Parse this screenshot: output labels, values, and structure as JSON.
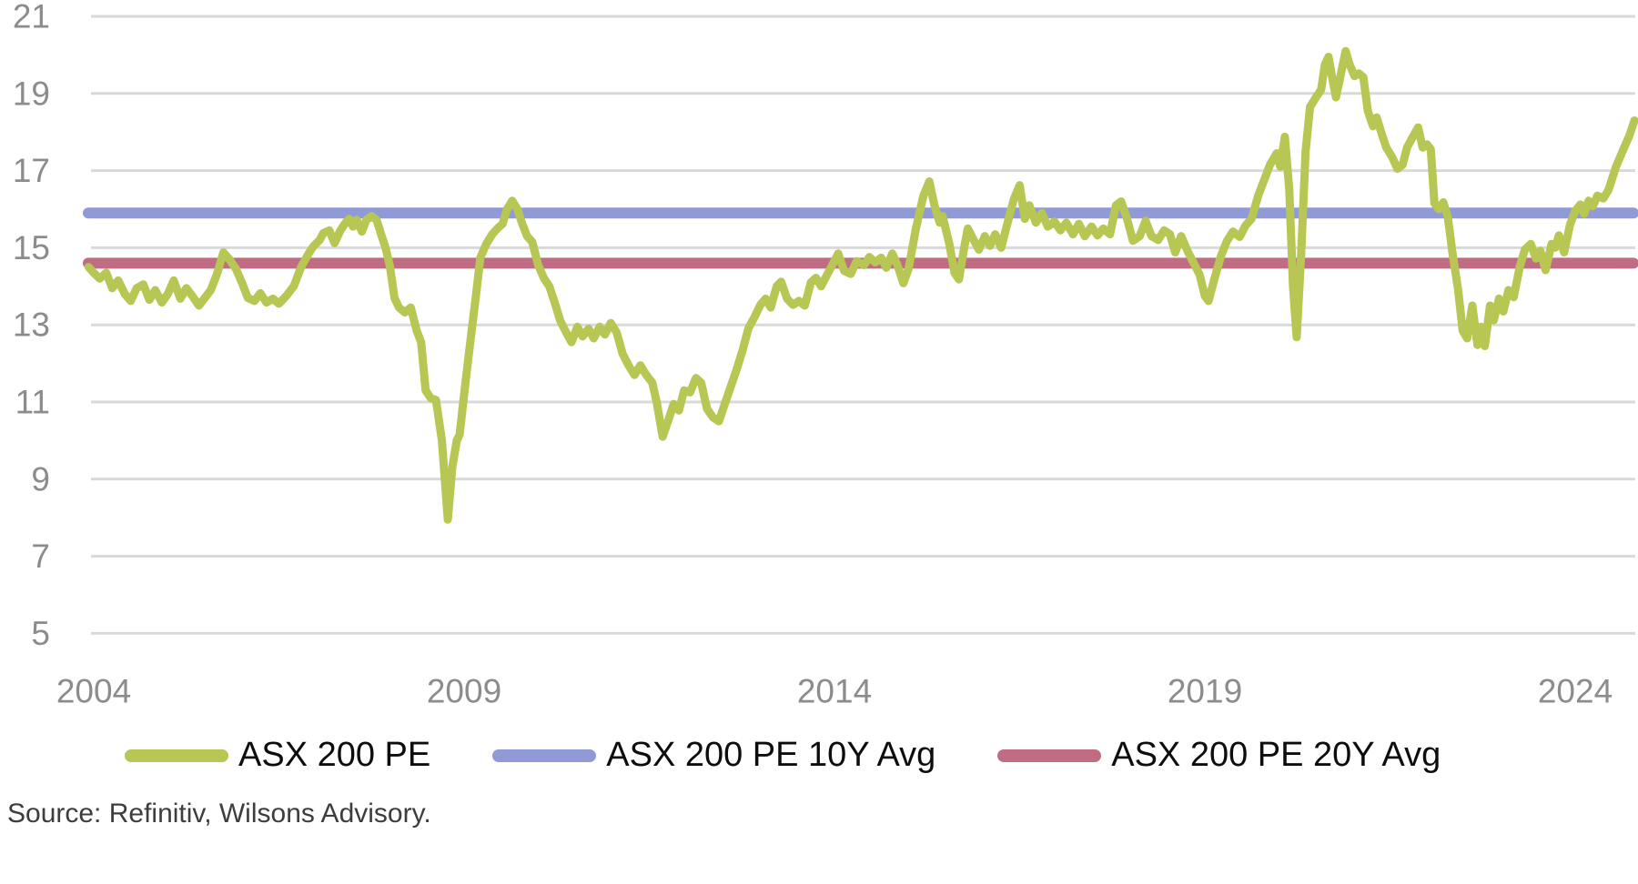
{
  "page": {
    "background": "#ffffff"
  },
  "source_note": "Source: Refinitiv, Wilsons Advisory.",
  "legend": [
    {
      "label": "ASX 200 PE",
      "color": "#b8c653"
    },
    {
      "label": "ASX 200 PE 10Y Avg",
      "color": "#8f9ad6"
    },
    {
      "label": "ASX 200 PE 20Y Avg",
      "color": "#c06d84"
    }
  ],
  "chart_data": {
    "type": "line",
    "title": "",
    "xlabel": "",
    "ylabel": "",
    "xlim": [
      2003.9,
      2024.85
    ],
    "ylim": [
      5,
      21
    ],
    "x_ticks": [
      2004,
      2009,
      2014,
      2019,
      2024
    ],
    "y_ticks": [
      5,
      7,
      9,
      11,
      13,
      15,
      17,
      19,
      21
    ],
    "grid": "horizontal",
    "legend_position": "bottom",
    "colors": {
      "grid": "#d9d9d9",
      "axis_text": "#8c8c8c",
      "pe_line": "#b8c653",
      "avg10_line": "#8f9ad6",
      "avg20_line": "#c06d84"
    },
    "series": [
      {
        "name": "ASX 200 PE",
        "color": "#b8c653",
        "points": [
          [
            2003.93,
            14.5
          ],
          [
            2004.0,
            14.35
          ],
          [
            2004.08,
            14.2
          ],
          [
            2004.17,
            14.35
          ],
          [
            2004.25,
            13.95
          ],
          [
            2004.33,
            14.15
          ],
          [
            2004.42,
            13.8
          ],
          [
            2004.5,
            13.62
          ],
          [
            2004.58,
            13.95
          ],
          [
            2004.67,
            14.05
          ],
          [
            2004.75,
            13.65
          ],
          [
            2004.83,
            13.9
          ],
          [
            2004.92,
            13.58
          ],
          [
            2005.0,
            13.8
          ],
          [
            2005.08,
            14.15
          ],
          [
            2005.17,
            13.68
          ],
          [
            2005.25,
            13.95
          ],
          [
            2005.33,
            13.75
          ],
          [
            2005.42,
            13.5
          ],
          [
            2005.5,
            13.7
          ],
          [
            2005.58,
            13.9
          ],
          [
            2005.67,
            14.35
          ],
          [
            2005.75,
            14.88
          ],
          [
            2005.83,
            14.7
          ],
          [
            2005.92,
            14.45
          ],
          [
            2006.0,
            14.1
          ],
          [
            2006.08,
            13.7
          ],
          [
            2006.17,
            13.62
          ],
          [
            2006.25,
            13.82
          ],
          [
            2006.33,
            13.58
          ],
          [
            2006.42,
            13.68
          ],
          [
            2006.5,
            13.55
          ],
          [
            2006.6,
            13.75
          ],
          [
            2006.7,
            14.0
          ],
          [
            2006.8,
            14.5
          ],
          [
            2006.9,
            14.85
          ],
          [
            2006.97,
            15.05
          ],
          [
            2007.05,
            15.2
          ],
          [
            2007.1,
            15.38
          ],
          [
            2007.18,
            15.45
          ],
          [
            2007.25,
            15.12
          ],
          [
            2007.33,
            15.45
          ],
          [
            2007.4,
            15.65
          ],
          [
            2007.45,
            15.75
          ],
          [
            2007.5,
            15.55
          ],
          [
            2007.55,
            15.72
          ],
          [
            2007.62,
            15.42
          ],
          [
            2007.68,
            15.72
          ],
          [
            2007.75,
            15.82
          ],
          [
            2007.82,
            15.72
          ],
          [
            2007.88,
            15.35
          ],
          [
            2007.94,
            15.0
          ],
          [
            2008.0,
            14.5
          ],
          [
            2008.06,
            13.7
          ],
          [
            2008.12,
            13.45
          ],
          [
            2008.2,
            13.32
          ],
          [
            2008.28,
            13.45
          ],
          [
            2008.36,
            12.85
          ],
          [
            2008.42,
            12.55
          ],
          [
            2008.48,
            11.3
          ],
          [
            2008.55,
            11.1
          ],
          [
            2008.62,
            11.05
          ],
          [
            2008.7,
            10.0
          ],
          [
            2008.78,
            7.95
          ],
          [
            2008.84,
            9.3
          ],
          [
            2008.9,
            10.0
          ],
          [
            2008.94,
            10.15
          ],
          [
            2009.0,
            11.2
          ],
          [
            2009.08,
            12.5
          ],
          [
            2009.15,
            13.6
          ],
          [
            2009.22,
            14.75
          ],
          [
            2009.3,
            15.1
          ],
          [
            2009.38,
            15.35
          ],
          [
            2009.45,
            15.5
          ],
          [
            2009.52,
            15.62
          ],
          [
            2009.58,
            16.0
          ],
          [
            2009.65,
            16.22
          ],
          [
            2009.72,
            16.0
          ],
          [
            2009.78,
            15.65
          ],
          [
            2009.85,
            15.3
          ],
          [
            2009.92,
            15.15
          ],
          [
            2010.0,
            14.55
          ],
          [
            2010.08,
            14.2
          ],
          [
            2010.15,
            14.0
          ],
          [
            2010.22,
            13.6
          ],
          [
            2010.3,
            13.1
          ],
          [
            2010.38,
            12.8
          ],
          [
            2010.45,
            12.55
          ],
          [
            2010.53,
            12.95
          ],
          [
            2010.6,
            12.7
          ],
          [
            2010.68,
            12.9
          ],
          [
            2010.75,
            12.65
          ],
          [
            2010.83,
            12.95
          ],
          [
            2010.9,
            12.75
          ],
          [
            2010.98,
            13.05
          ],
          [
            2011.06,
            12.8
          ],
          [
            2011.14,
            12.25
          ],
          [
            2011.22,
            11.95
          ],
          [
            2011.3,
            11.7
          ],
          [
            2011.38,
            11.95
          ],
          [
            2011.46,
            11.7
          ],
          [
            2011.54,
            11.5
          ],
          [
            2011.6,
            11.0
          ],
          [
            2011.68,
            10.1
          ],
          [
            2011.76,
            10.55
          ],
          [
            2011.83,
            10.95
          ],
          [
            2011.9,
            10.78
          ],
          [
            2011.97,
            11.3
          ],
          [
            2012.05,
            11.25
          ],
          [
            2012.13,
            11.62
          ],
          [
            2012.2,
            11.5
          ],
          [
            2012.28,
            10.82
          ],
          [
            2012.36,
            10.6
          ],
          [
            2012.44,
            10.5
          ],
          [
            2012.52,
            10.95
          ],
          [
            2012.6,
            11.4
          ],
          [
            2012.68,
            11.85
          ],
          [
            2012.76,
            12.35
          ],
          [
            2012.84,
            12.92
          ],
          [
            2012.92,
            13.2
          ],
          [
            2013.0,
            13.52
          ],
          [
            2013.07,
            13.68
          ],
          [
            2013.14,
            13.45
          ],
          [
            2013.22,
            14.0
          ],
          [
            2013.28,
            14.12
          ],
          [
            2013.36,
            13.68
          ],
          [
            2013.44,
            13.52
          ],
          [
            2013.52,
            13.62
          ],
          [
            2013.6,
            13.5
          ],
          [
            2013.68,
            14.1
          ],
          [
            2013.75,
            14.22
          ],
          [
            2013.82,
            14.0
          ],
          [
            2013.9,
            14.3
          ],
          [
            2013.97,
            14.55
          ],
          [
            2014.05,
            14.85
          ],
          [
            2014.13,
            14.4
          ],
          [
            2014.22,
            14.32
          ],
          [
            2014.3,
            14.65
          ],
          [
            2014.4,
            14.55
          ],
          [
            2014.47,
            14.76
          ],
          [
            2014.55,
            14.62
          ],
          [
            2014.63,
            14.74
          ],
          [
            2014.7,
            14.48
          ],
          [
            2014.78,
            14.85
          ],
          [
            2014.85,
            14.55
          ],
          [
            2014.93,
            14.08
          ],
          [
            2015.0,
            14.45
          ],
          [
            2015.1,
            15.5
          ],
          [
            2015.2,
            16.35
          ],
          [
            2015.28,
            16.72
          ],
          [
            2015.35,
            16.1
          ],
          [
            2015.42,
            15.65
          ],
          [
            2015.46,
            15.82
          ],
          [
            2015.55,
            15.1
          ],
          [
            2015.62,
            14.35
          ],
          [
            2015.68,
            14.18
          ],
          [
            2015.75,
            15.0
          ],
          [
            2015.8,
            15.5
          ],
          [
            2015.88,
            15.2
          ],
          [
            2015.95,
            14.95
          ],
          [
            2016.03,
            15.3
          ],
          [
            2016.1,
            15.05
          ],
          [
            2016.17,
            15.35
          ],
          [
            2016.25,
            15.0
          ],
          [
            2016.33,
            15.6
          ],
          [
            2016.42,
            16.25
          ],
          [
            2016.5,
            16.62
          ],
          [
            2016.57,
            15.75
          ],
          [
            2016.63,
            16.1
          ],
          [
            2016.72,
            15.65
          ],
          [
            2016.8,
            15.9
          ],
          [
            2016.88,
            15.55
          ],
          [
            2016.97,
            15.68
          ],
          [
            2017.05,
            15.45
          ],
          [
            2017.13,
            15.65
          ],
          [
            2017.22,
            15.35
          ],
          [
            2017.3,
            15.62
          ],
          [
            2017.38,
            15.3
          ],
          [
            2017.47,
            15.55
          ],
          [
            2017.55,
            15.32
          ],
          [
            2017.63,
            15.5
          ],
          [
            2017.72,
            15.35
          ],
          [
            2017.8,
            16.1
          ],
          [
            2017.87,
            16.2
          ],
          [
            2017.95,
            15.75
          ],
          [
            2018.03,
            15.18
          ],
          [
            2018.12,
            15.3
          ],
          [
            2018.2,
            15.7
          ],
          [
            2018.28,
            15.3
          ],
          [
            2018.37,
            15.2
          ],
          [
            2018.45,
            15.45
          ],
          [
            2018.53,
            15.35
          ],
          [
            2018.6,
            14.88
          ],
          [
            2018.68,
            15.3
          ],
          [
            2018.77,
            14.9
          ],
          [
            2018.85,
            14.6
          ],
          [
            2018.93,
            14.3
          ],
          [
            2019.0,
            13.75
          ],
          [
            2019.05,
            13.62
          ],
          [
            2019.13,
            14.2
          ],
          [
            2019.22,
            14.8
          ],
          [
            2019.3,
            15.18
          ],
          [
            2019.38,
            15.42
          ],
          [
            2019.47,
            15.28
          ],
          [
            2019.55,
            15.58
          ],
          [
            2019.63,
            15.75
          ],
          [
            2019.72,
            16.35
          ],
          [
            2019.8,
            16.75
          ],
          [
            2019.88,
            17.15
          ],
          [
            2019.97,
            17.45
          ],
          [
            2020.02,
            17.1
          ],
          [
            2020.08,
            17.88
          ],
          [
            2020.14,
            16.5
          ],
          [
            2020.19,
            14.0
          ],
          [
            2020.24,
            12.68
          ],
          [
            2020.3,
            14.8
          ],
          [
            2020.36,
            17.5
          ],
          [
            2020.42,
            18.65
          ],
          [
            2020.5,
            18.9
          ],
          [
            2020.57,
            19.1
          ],
          [
            2020.62,
            19.75
          ],
          [
            2020.67,
            19.95
          ],
          [
            2020.72,
            19.4
          ],
          [
            2020.77,
            18.9
          ],
          [
            2020.83,
            19.45
          ],
          [
            2020.9,
            20.1
          ],
          [
            2020.95,
            19.78
          ],
          [
            2021.02,
            19.45
          ],
          [
            2021.08,
            19.52
          ],
          [
            2021.14,
            19.42
          ],
          [
            2021.2,
            18.55
          ],
          [
            2021.27,
            18.15
          ],
          [
            2021.32,
            18.38
          ],
          [
            2021.38,
            18.0
          ],
          [
            2021.45,
            17.6
          ],
          [
            2021.53,
            17.35
          ],
          [
            2021.6,
            17.05
          ],
          [
            2021.67,
            17.15
          ],
          [
            2021.73,
            17.6
          ],
          [
            2021.8,
            17.85
          ],
          [
            2021.88,
            18.12
          ],
          [
            2021.94,
            17.6
          ],
          [
            2022.0,
            17.68
          ],
          [
            2022.05,
            17.55
          ],
          [
            2022.1,
            16.15
          ],
          [
            2022.16,
            16.0
          ],
          [
            2022.22,
            16.18
          ],
          [
            2022.28,
            15.8
          ],
          [
            2022.34,
            14.9
          ],
          [
            2022.42,
            13.9
          ],
          [
            2022.48,
            12.85
          ],
          [
            2022.54,
            12.65
          ],
          [
            2022.61,
            13.5
          ],
          [
            2022.68,
            12.48
          ],
          [
            2022.73,
            12.95
          ],
          [
            2022.78,
            12.45
          ],
          [
            2022.85,
            13.5
          ],
          [
            2022.9,
            13.12
          ],
          [
            2022.97,
            13.68
          ],
          [
            2023.03,
            13.35
          ],
          [
            2023.1,
            13.9
          ],
          [
            2023.17,
            13.72
          ],
          [
            2023.25,
            14.5
          ],
          [
            2023.32,
            14.95
          ],
          [
            2023.4,
            15.1
          ],
          [
            2023.47,
            14.72
          ],
          [
            2023.53,
            14.92
          ],
          [
            2023.6,
            14.42
          ],
          [
            2023.68,
            15.1
          ],
          [
            2023.73,
            15.0
          ],
          [
            2023.78,
            15.32
          ],
          [
            2023.85,
            14.88
          ],
          [
            2023.93,
            15.6
          ],
          [
            2024.0,
            15.95
          ],
          [
            2024.07,
            16.12
          ],
          [
            2024.12,
            15.88
          ],
          [
            2024.18,
            16.22
          ],
          [
            2024.24,
            16.08
          ],
          [
            2024.3,
            16.35
          ],
          [
            2024.38,
            16.28
          ],
          [
            2024.45,
            16.5
          ],
          [
            2024.55,
            17.1
          ],
          [
            2024.65,
            17.55
          ],
          [
            2024.73,
            17.9
          ],
          [
            2024.8,
            18.3
          ]
        ]
      },
      {
        "name": "ASX 200 PE 10Y Avg",
        "color": "#8f9ad6",
        "value": 15.9
      },
      {
        "name": "ASX 200 PE 20Y Avg",
        "color": "#c06d84",
        "value": 14.6
      }
    ]
  }
}
